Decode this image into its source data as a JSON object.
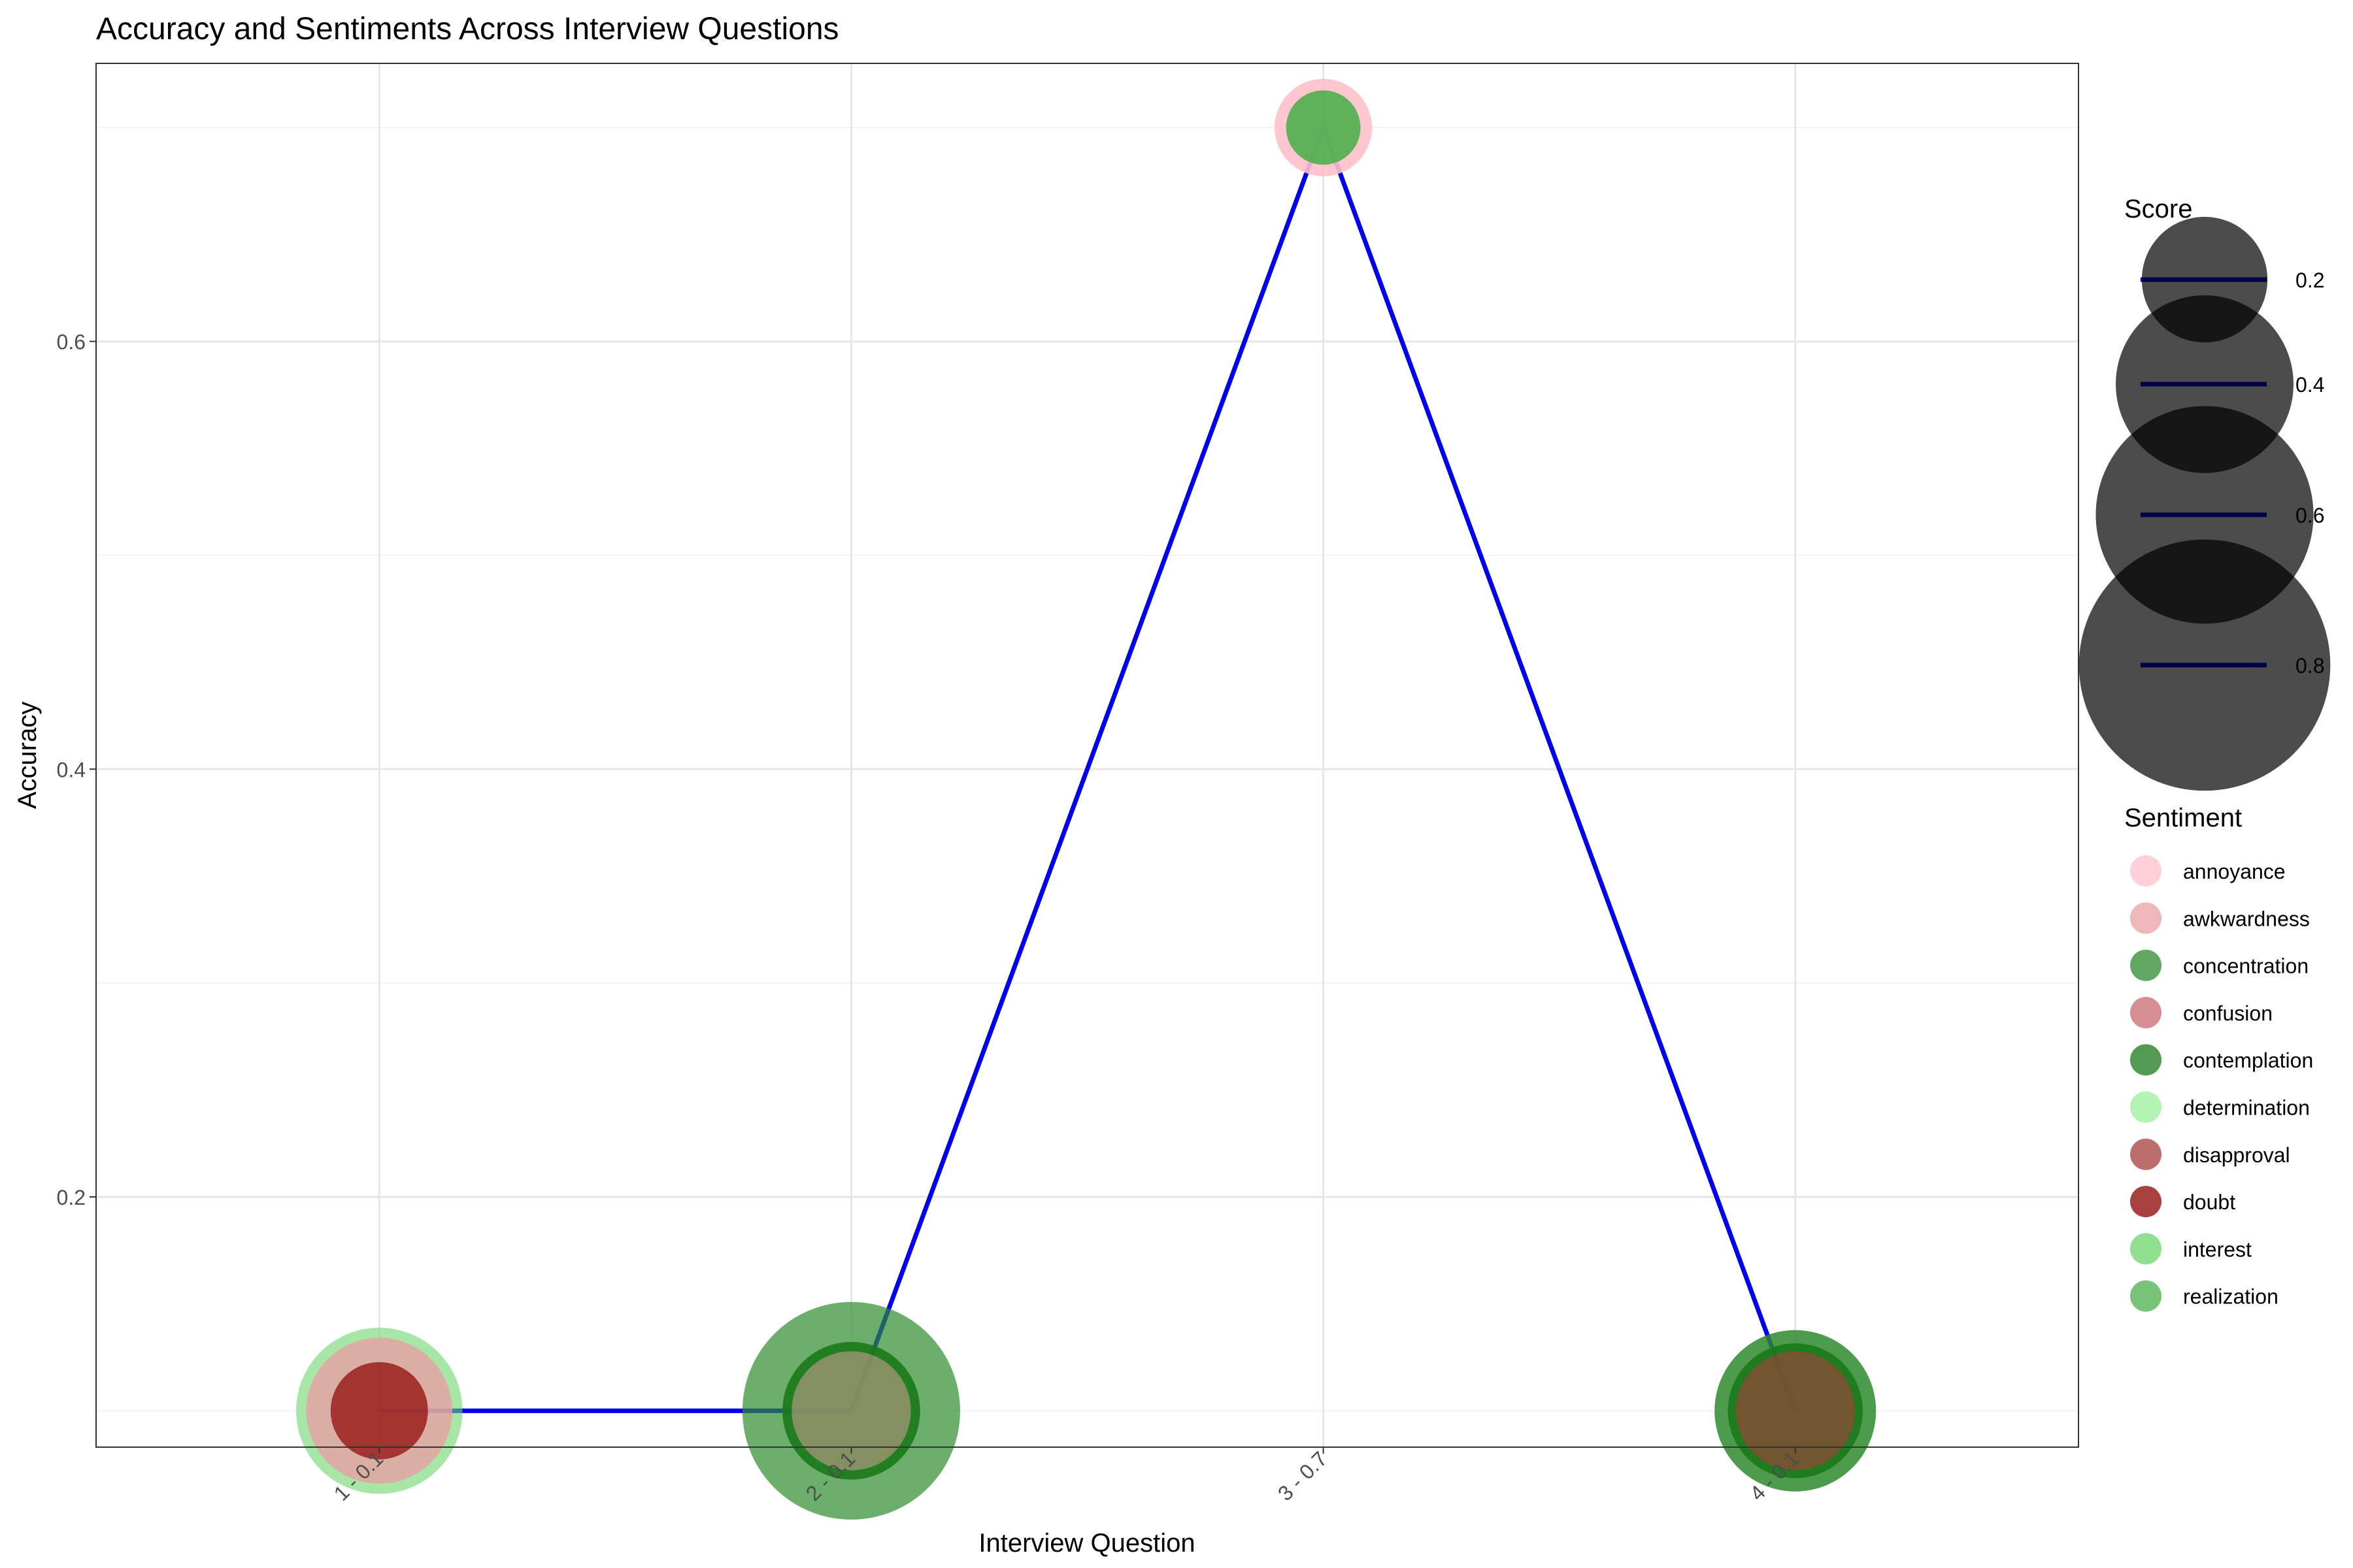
{
  "chart_data": {
    "type": "scatter",
    "title": "Accuracy and Sentiments Across Interview Questions",
    "xlabel": "Interview Question",
    "ylabel": "Accuracy",
    "categories": [
      "1 - 0.1",
      "2 - 0.1",
      "3 - 0.7",
      "4 - 0.1"
    ],
    "ylim": [
      0.083,
      0.73
    ],
    "yticks": [
      0.2,
      0.4,
      0.6
    ],
    "yticks_minor": [
      0.1,
      0.3,
      0.5,
      0.7
    ],
    "grid": true,
    "line": {
      "color": "#0000ee",
      "values": [
        0.1,
        0.1,
        0.7,
        0.1
      ]
    },
    "sentiment_colors": {
      "annoyance": "#ffc0cb",
      "awkwardness": "#e8a0a4",
      "concentration": "#2e8b2e",
      "confusion": "#c86870",
      "contemplation": "#1a7a1a",
      "determination": "#98f098",
      "disapproval": "#a83c3c",
      "doubt": "#8b0000",
      "interest": "#6cd66c",
      "realization": "#4caf4c"
    },
    "points": [
      {
        "category": "1 - 0.1",
        "accuracy": 0.1,
        "sentiment": "interest",
        "score": 0.35,
        "alpha": 0.6
      },
      {
        "category": "1 - 0.1",
        "accuracy": 0.1,
        "sentiment": "awkwardness",
        "score": 0.27,
        "alpha": 0.8
      },
      {
        "category": "1 - 0.1",
        "accuracy": 0.1,
        "sentiment": "doubt",
        "score": 0.12,
        "alpha": 0.7
      },
      {
        "category": "2 - 0.1",
        "accuracy": 0.1,
        "sentiment": "concentration",
        "score": 0.6,
        "alpha": 0.7
      },
      {
        "category": "2 - 0.1",
        "accuracy": 0.1,
        "sentiment": "contemplation",
        "score": 0.24,
        "alpha": 0.9
      },
      {
        "category": "2 - 0.1",
        "accuracy": 0.1,
        "sentiment": "awkwardness",
        "score": 0.18,
        "alpha": 0.5
      },
      {
        "category": "3 - 0.7",
        "accuracy": 0.7,
        "sentiment": "annoyance",
        "score": 0.12,
        "alpha": 0.9
      },
      {
        "category": "3 - 0.7",
        "accuracy": 0.7,
        "sentiment": "realization",
        "score": 0.07,
        "alpha": 0.9
      },
      {
        "category": "4 - 0.1",
        "accuracy": 0.1,
        "sentiment": "concentration",
        "score": 0.33,
        "alpha": 0.85
      },
      {
        "category": "4 - 0.1",
        "accuracy": 0.1,
        "sentiment": "contemplation",
        "score": 0.23,
        "alpha": 0.9
      },
      {
        "category": "4 - 0.1",
        "accuracy": 0.1,
        "sentiment": "disapproval",
        "score": 0.18,
        "alpha": 0.6
      }
    ],
    "legend_score": {
      "title": "Score",
      "placement": "right",
      "entries": [
        {
          "label": "0.2",
          "value": 0.2
        },
        {
          "label": "0.4",
          "value": 0.4
        },
        {
          "label": "0.6",
          "value": 0.6
        },
        {
          "label": "0.8",
          "value": 0.8
        }
      ]
    },
    "legend_sentiment": {
      "title": "Sentiment",
      "placement": "right",
      "entries": [
        "annoyance",
        "awkwardness",
        "concentration",
        "confusion",
        "contemplation",
        "determination",
        "disapproval",
        "doubt",
        "interest",
        "realization"
      ]
    }
  }
}
